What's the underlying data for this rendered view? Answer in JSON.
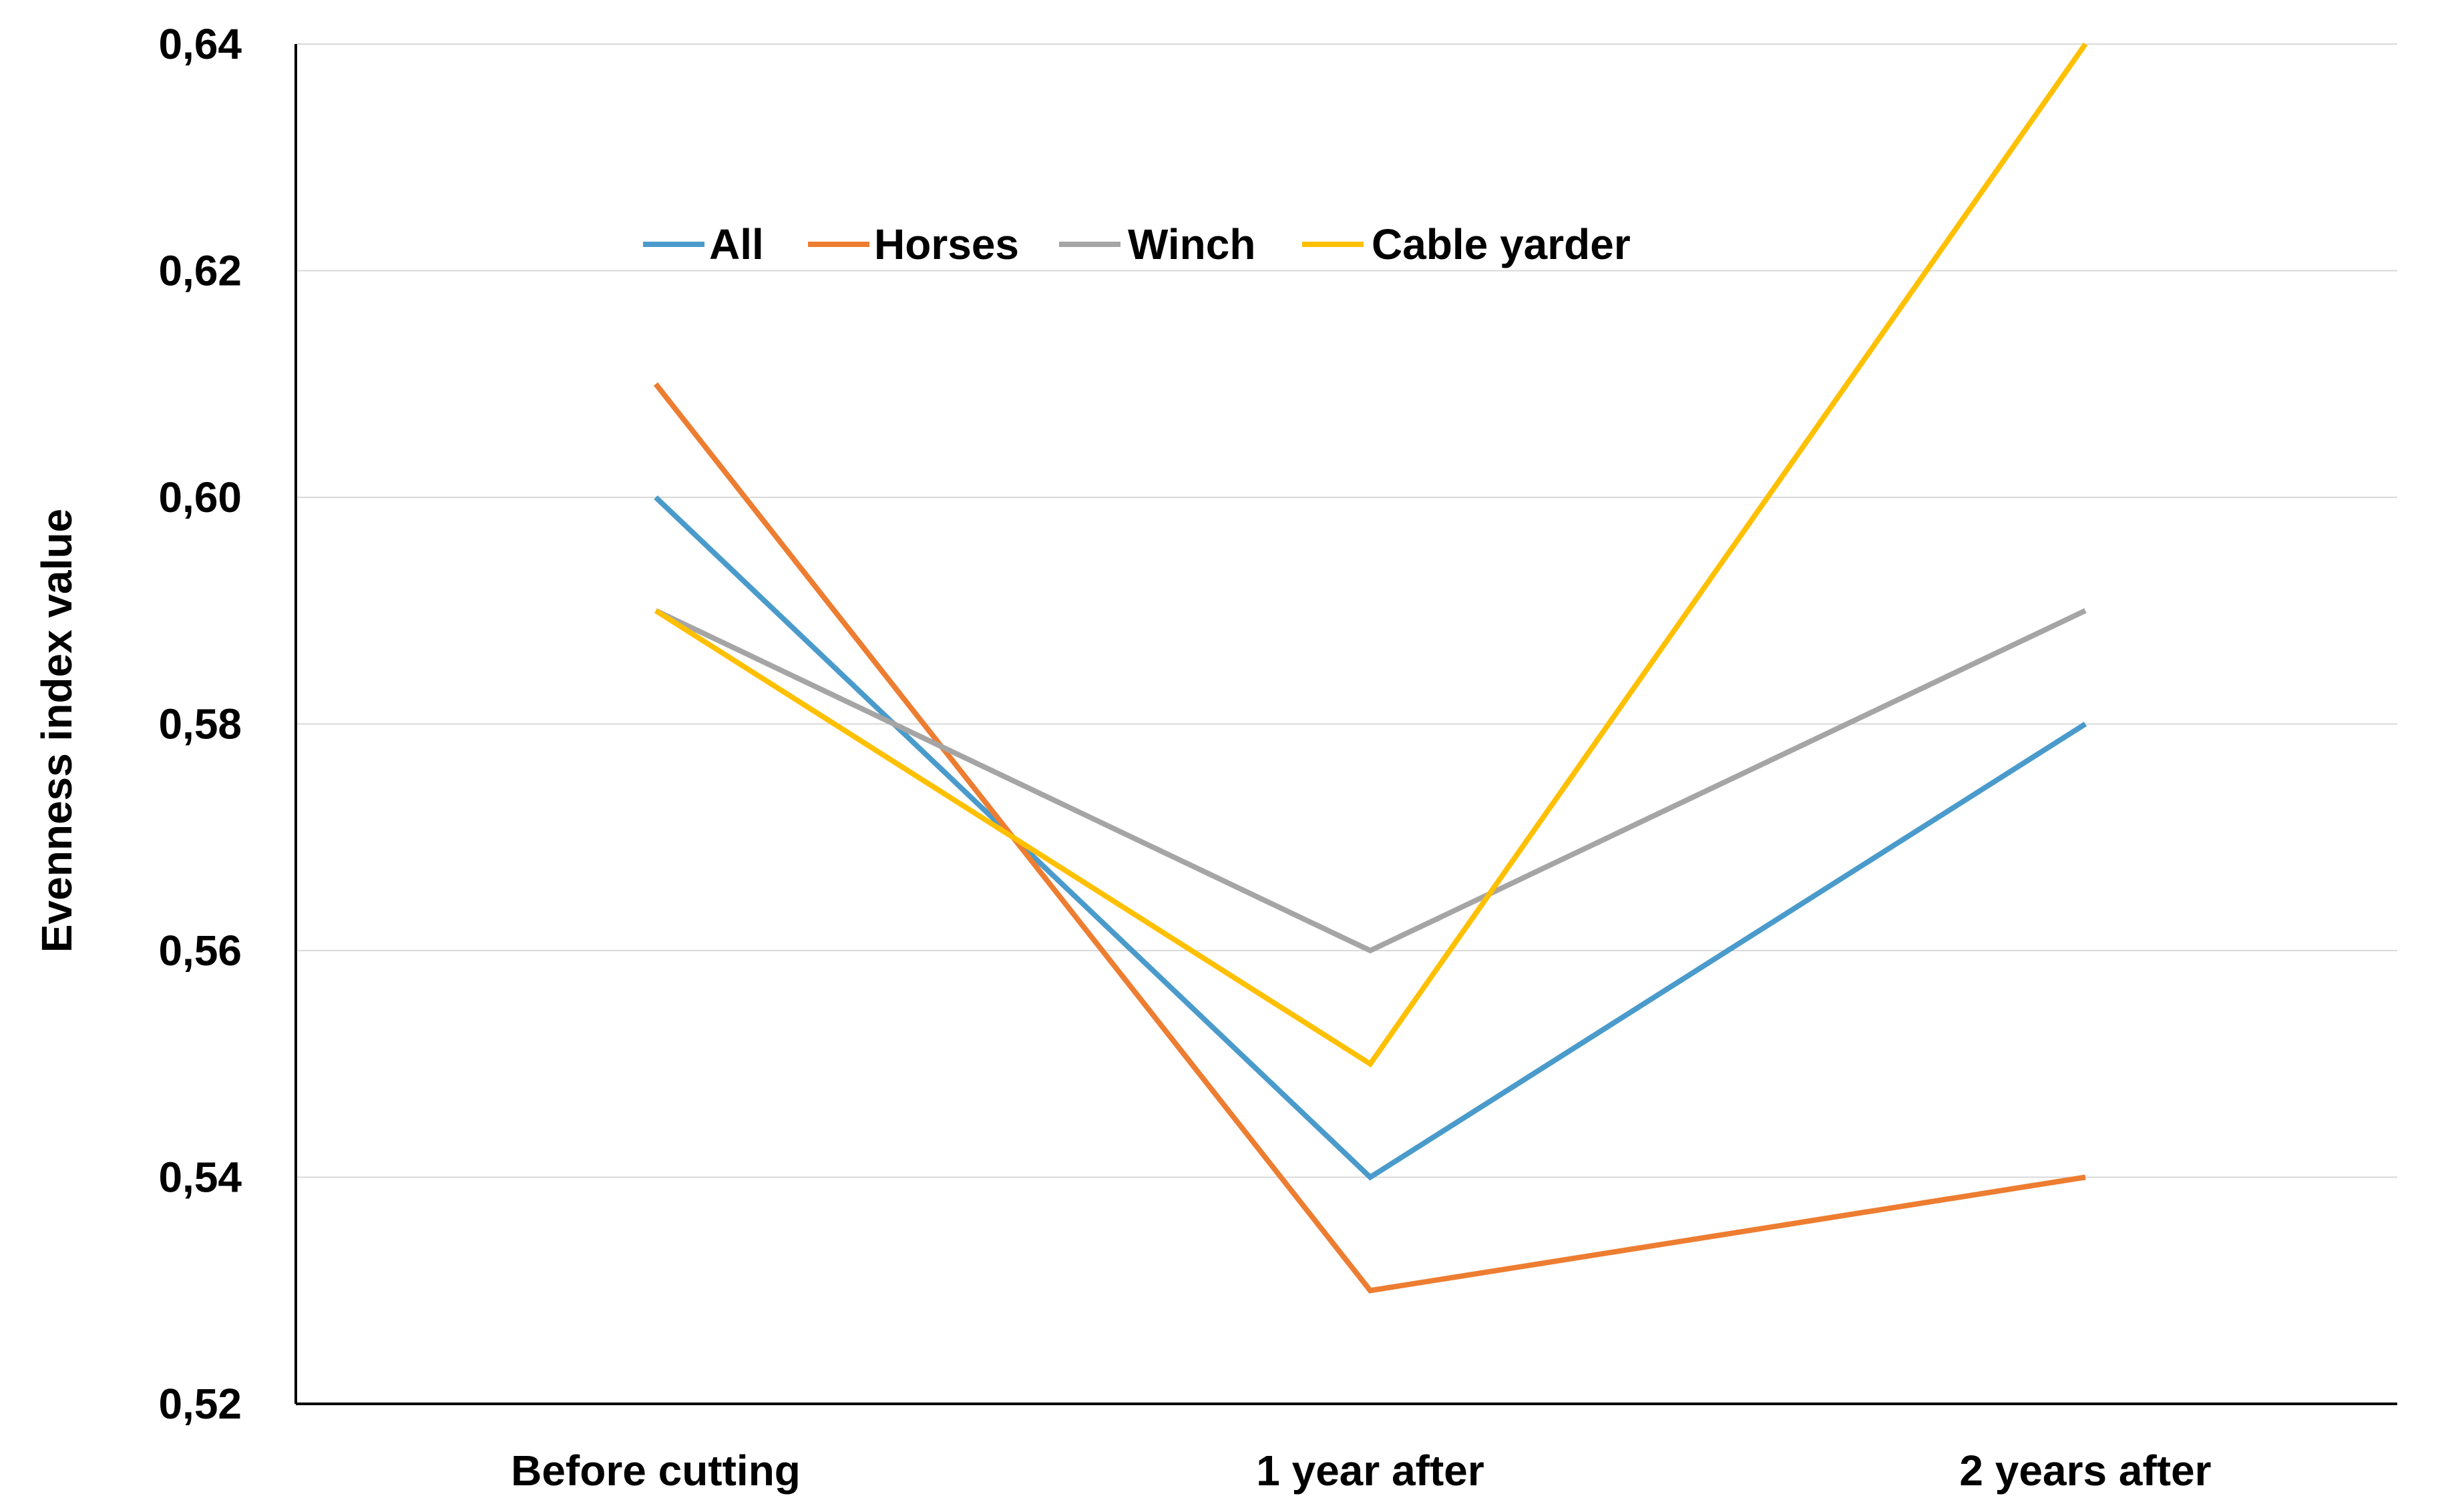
{
  "chart_data": {
    "type": "line",
    "title": "",
    "xlabel": "",
    "ylabel": "Evenness index value",
    "categories": [
      "Before cutting",
      "1 year after",
      "2 years after"
    ],
    "ylim": [
      0.52,
      0.64
    ],
    "yticks": [
      0.52,
      0.54,
      0.56,
      0.58,
      0.6,
      0.62,
      0.64
    ],
    "ytick_labels": [
      "0,52",
      "0,54",
      "0,56",
      "0,58",
      "0,60",
      "0,62",
      "0,64"
    ],
    "grid": "horizontal",
    "legend_position": "top-left, inside plot",
    "series": [
      {
        "name": "All",
        "color": "#4A9BCB",
        "values": [
          0.6,
          0.54,
          0.58
        ]
      },
      {
        "name": "Horses",
        "color": "#ED7D31",
        "values": [
          0.61,
          0.53,
          0.54
        ]
      },
      {
        "name": "Winch",
        "color": "#A5A5A5",
        "values": [
          0.59,
          0.56,
          0.59
        ]
      },
      {
        "name": "Cable yarder",
        "color": "#FFC000",
        "values": [
          0.59,
          0.55,
          0.64
        ]
      }
    ]
  }
}
